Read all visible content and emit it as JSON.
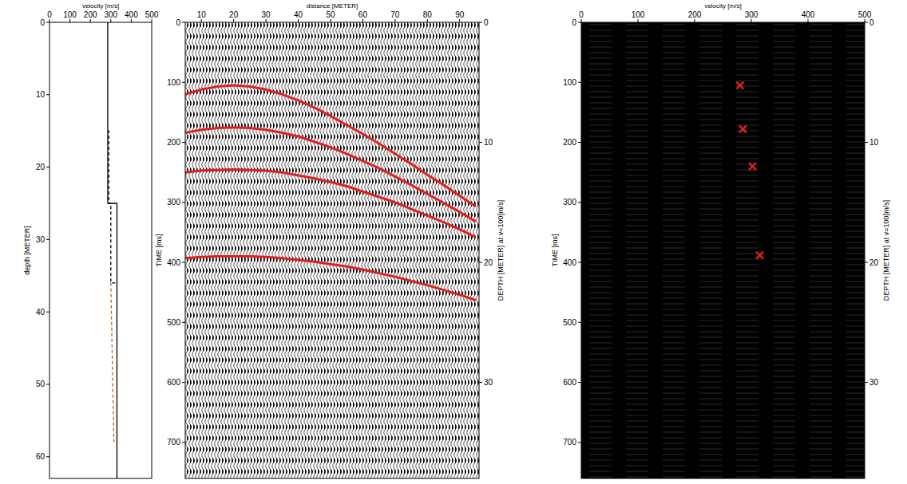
{
  "chart_data": [
    {
      "type": "line",
      "x_label": "velocity [m/s]",
      "y_label": "depth [METER]",
      "xlim": [
        0,
        500
      ],
      "xticks": [
        0,
        100,
        200,
        300,
        400,
        500
      ],
      "ylim": [
        0,
        63
      ],
      "yticks": [
        0,
        10,
        20,
        30,
        40,
        50,
        60
      ],
      "series": [
        {
          "color": "#000000",
          "line_style": "solid",
          "x": [
            285,
            285,
            330,
            330
          ],
          "values": [
            0,
            25,
            25,
            63
          ]
        },
        {
          "color": "#000000",
          "line_style": "dashed",
          "x": [
            285,
            290,
            290,
            300,
            300,
            330
          ],
          "values": [
            15,
            15,
            25,
            25,
            36,
            36
          ]
        },
        {
          "color": "#b5651d",
          "line_style": "dashed",
          "x": [
            300,
            315
          ],
          "values": [
            36,
            58
          ]
        }
      ]
    },
    {
      "type": "wiggle",
      "x_label": "distance [METER]",
      "y_label": "TIME [ms]",
      "y2_label": "DEPTH [METER] at v=100[m/s]",
      "xlim": [
        5,
        96
      ],
      "xticks": [
        10,
        20,
        30,
        40,
        50,
        60,
        70,
        80,
        90
      ],
      "ylim": [
        0,
        760
      ],
      "yticks": [
        0,
        100,
        200,
        300,
        400,
        500,
        600,
        700
      ],
      "y2lim": [
        0,
        38
      ],
      "y2ticks": [
        0,
        10,
        20,
        30
      ],
      "x": [
        5,
        10,
        15,
        20,
        25,
        30,
        35,
        40,
        45,
        50,
        55,
        60,
        65,
        70,
        75,
        80,
        85,
        90,
        95
      ],
      "series": [
        {
          "color": "#e02020",
          "line_style": "solid",
          "values": [
            120,
            112,
            107,
            105,
            107,
            112,
            120,
            130,
            142,
            156,
            171,
            186,
            202,
            219,
            236,
            254,
            271,
            289,
            307
          ]
        },
        {
          "color": "#e02020",
          "line_style": "solid",
          "values": [
            184,
            179,
            176,
            175,
            176,
            179,
            184,
            190,
            199,
            208,
            219,
            231,
            243,
            257,
            271,
            286,
            301,
            316,
            332
          ]
        },
        {
          "color": "#e02020",
          "line_style": "solid",
          "values": [
            250,
            247,
            246,
            245,
            246,
            247,
            250,
            255,
            260,
            266,
            273,
            282,
            291,
            300,
            311,
            322,
            333,
            345,
            358
          ]
        },
        {
          "color": "#e02020",
          "line_style": "solid",
          "values": [
            393,
            391,
            390,
            390,
            390,
            391,
            393,
            396,
            399,
            403,
            407,
            412,
            418,
            424,
            431,
            438,
            446,
            454,
            463
          ]
        }
      ]
    },
    {
      "type": "semblance",
      "x_label": "velocity [m/s]",
      "y_label": "TIME [ms]",
      "y2_label": "DEPTH [METER] at v=100[m/s]",
      "xlim": [
        0,
        500
      ],
      "xticks": [
        0,
        100,
        200,
        300,
        400,
        500
      ],
      "ylim": [
        0,
        760
      ],
      "yticks": [
        0,
        100,
        200,
        300,
        400,
        500,
        600,
        700
      ],
      "y2lim": [
        0,
        38
      ],
      "y2ticks": [
        0,
        10,
        20,
        30
      ],
      "series": [
        {
          "color": "#e02020",
          "marker": "x",
          "x": [
            280,
            285,
            302,
            315
          ],
          "values": [
            105,
            178,
            240,
            388
          ]
        }
      ]
    }
  ]
}
